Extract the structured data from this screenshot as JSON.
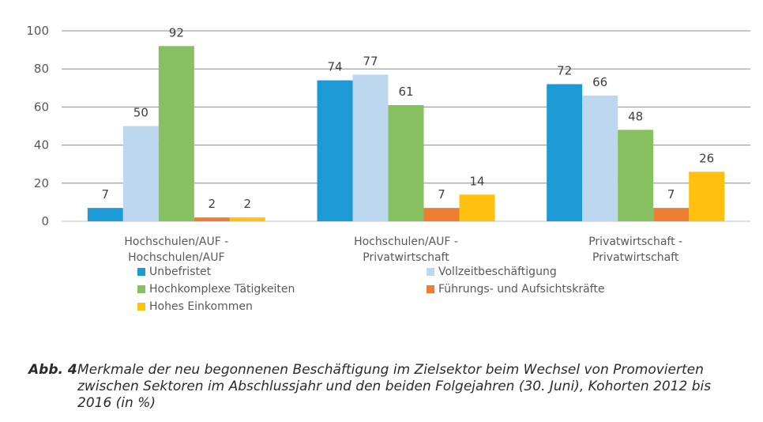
{
  "chart_data": {
    "type": "bar",
    "title": "",
    "xlabel": "",
    "ylabel": "",
    "ylim": [
      0,
      100
    ],
    "yticks": [
      0,
      20,
      40,
      60,
      80,
      100
    ],
    "grid": true,
    "legend_position": "bottom",
    "categories": [
      [
        "Hochschulen/AUF -",
        "Hochschulen/AUF"
      ],
      [
        "Hochschulen/AUF -",
        "Privatwirtschaft"
      ],
      [
        "Privatwirtschaft -",
        "Privatwirtschaft"
      ]
    ],
    "series": [
      {
        "name": "Unbefristet",
        "color": "#1B9AD6",
        "values": [
          7,
          74,
          72
        ]
      },
      {
        "name": "Vollzeitbeschäftigung",
        "color": "#BDD7EE",
        "values": [
          50,
          77,
          66
        ]
      },
      {
        "name": "Hochkomplexe Tätigkeiten",
        "color": "#86C060",
        "values": [
          92,
          61,
          48
        ]
      },
      {
        "name": "Führungs- und Aufsichtskräfte",
        "color": "#ED7D31",
        "values": [
          2,
          7,
          7
        ]
      },
      {
        "name": "Hohes Einkommen",
        "color": "#FFC010",
        "values": [
          2,
          14,
          26
        ]
      }
    ]
  },
  "caption": {
    "lead": "Abb. 4",
    "text": "Merkmale der neu begonnenen Beschäftigung im Zielsektor beim Wechsel von Promovierten zwischen Sektoren im Abschlussjahr und den beiden Folgejahren (30. Juni), Kohorten 2012 bis 2016 (in %)"
  }
}
